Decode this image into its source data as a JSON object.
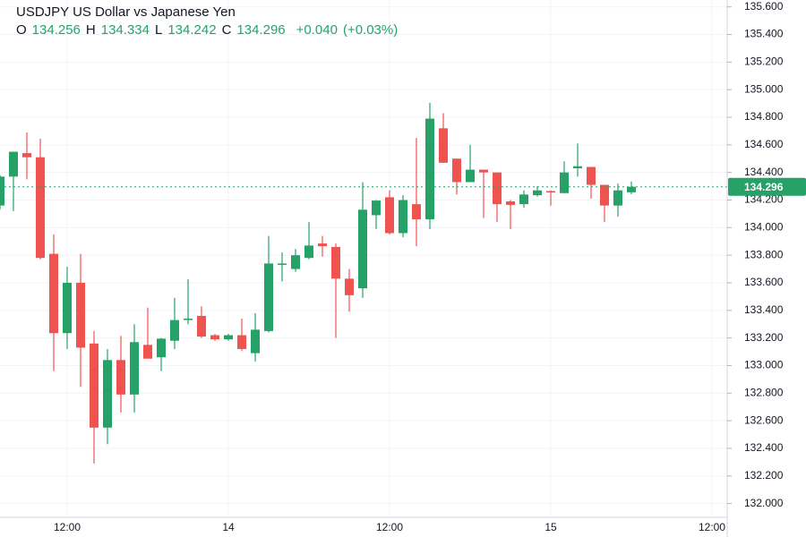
{
  "chart_data": {
    "type": "candlestick",
    "title": "USDJPY US Dollar vs Japanese Yen",
    "ohlc_header": [
      {
        "label": "O",
        "value": 134.256
      },
      {
        "label": "H",
        "value": 134.334
      },
      {
        "label": "L",
        "value": 134.242
      },
      {
        "label": "C",
        "value": 134.296
      }
    ],
    "change": {
      "value": 0.04,
      "label": "+0.040"
    },
    "change_percent": {
      "value": 0.03,
      "label": "(+0.03%)"
    },
    "last_price": 134.296,
    "categories": [
      null,
      null,
      null,
      null,
      null,
      "12:00",
      null,
      null,
      null,
      null,
      null,
      null,
      null,
      null,
      null,
      null,
      null,
      "14",
      null,
      null,
      null,
      null,
      null,
      null,
      null,
      null,
      null,
      null,
      null,
      "12:00",
      null,
      null,
      null,
      null,
      null,
      null,
      null,
      null,
      null,
      null,
      null,
      "15",
      null,
      null,
      null,
      null,
      null,
      null,
      null,
      null,
      null,
      null,
      null,
      "12:00"
    ],
    "open": [
      134.16,
      134.37,
      134.54,
      134.51,
      133.81,
      133.235,
      133.6,
      133.16,
      132.55,
      133.04,
      132.79,
      133.15,
      133.06,
      133.18,
      133.33,
      133.36,
      133.22,
      133.19,
      133.22,
      133.09,
      133.25,
      133.73,
      133.7,
      133.78,
      133.885,
      133.86,
      133.63,
      133.56,
      134.09,
      134.22,
      133.96,
      134.17,
      134.06,
      134.72,
      134.5,
      134.33,
      134.42,
      134.4,
      134.19,
      134.17,
      134.235,
      134.265,
      134.25,
      134.43,
      134.44,
      134.31,
      134.16,
      134.256,
      null,
      null,
      null,
      null,
      null,
      null
    ],
    "high": [
      134.38,
      134.55,
      134.69,
      134.645,
      133.95,
      133.716,
      133.81,
      133.25,
      133.12,
      133.215,
      133.3,
      133.42,
      133.2,
      133.49,
      133.625,
      133.43,
      133.23,
      133.23,
      133.34,
      133.38,
      133.94,
      133.82,
      133.845,
      134.04,
      133.94,
      133.885,
      133.7,
      134.33,
      134.2,
      134.27,
      134.235,
      134.65,
      134.905,
      134.83,
      134.5,
      134.6,
      134.42,
      134.4,
      134.2,
      134.27,
      134.3,
      134.27,
      134.48,
      134.61,
      134.44,
      134.31,
      134.32,
      134.334,
      null,
      null,
      null,
      null,
      null,
      null
    ],
    "low": [
      134.13,
      134.12,
      134.35,
      133.77,
      132.96,
      133.12,
      132.845,
      132.29,
      132.43,
      132.66,
      132.66,
      133.05,
      132.96,
      133.12,
      133.3,
      133.2,
      133.18,
      133.18,
      133.105,
      133.03,
      133.24,
      133.61,
      133.68,
      133.77,
      133.79,
      133.2,
      133.39,
      133.49,
      133.99,
      133.95,
      133.93,
      133.865,
      133.99,
      134.47,
      134.24,
      134.33,
      134.07,
      134.04,
      133.99,
      134.145,
      134.225,
      134.16,
      134.25,
      134.37,
      134.21,
      134.04,
      134.08,
      134.242,
      null,
      null,
      null,
      null,
      null,
      null
    ],
    "close": [
      134.37,
      134.55,
      134.51,
      133.78,
      133.235,
      133.6,
      133.13,
      132.55,
      133.04,
      132.79,
      133.17,
      133.05,
      133.195,
      133.33,
      133.34,
      133.21,
      133.19,
      133.22,
      133.12,
      133.26,
      133.74,
      133.74,
      133.8,
      133.87,
      133.865,
      133.63,
      133.51,
      134.13,
      134.196,
      133.96,
      134.2,
      134.06,
      134.79,
      134.47,
      134.33,
      134.42,
      134.4,
      134.17,
      134.165,
      134.24,
      134.27,
      134.26,
      134.4,
      134.445,
      134.31,
      134.16,
      134.27,
      134.296,
      null,
      null,
      null,
      null,
      null,
      null
    ],
    "up_color": "#26a269",
    "down_color": "#ef5350",
    "ylim": [
      131.9,
      135.65
    ],
    "yticks": [
      {
        "value": 132.0,
        "label": "132.000"
      },
      {
        "value": 132.2,
        "label": "132.200"
      },
      {
        "value": 132.4,
        "label": "132.400"
      },
      {
        "value": 132.6,
        "label": "132.600"
      },
      {
        "value": 132.8,
        "label": "132.800"
      },
      {
        "value": 133.0,
        "label": "133.000"
      },
      {
        "value": 133.2,
        "label": "133.200"
      },
      {
        "value": 133.4,
        "label": "133.400"
      },
      {
        "value": 133.6,
        "label": "133.600"
      },
      {
        "value": 133.8,
        "label": "133.800"
      },
      {
        "value": 134.0,
        "label": "134.000"
      },
      {
        "value": 134.2,
        "label": "134.200"
      },
      {
        "value": 134.4,
        "label": "134.400"
      },
      {
        "value": 134.6,
        "label": "134.600"
      },
      {
        "value": 134.8,
        "label": "134.800"
      },
      {
        "value": 135.0,
        "label": "135.000"
      },
      {
        "value": 135.2,
        "label": "135.200"
      },
      {
        "value": 135.4,
        "label": "135.400"
      },
      {
        "value": 135.6,
        "label": "135.600"
      }
    ],
    "grid": true
  }
}
